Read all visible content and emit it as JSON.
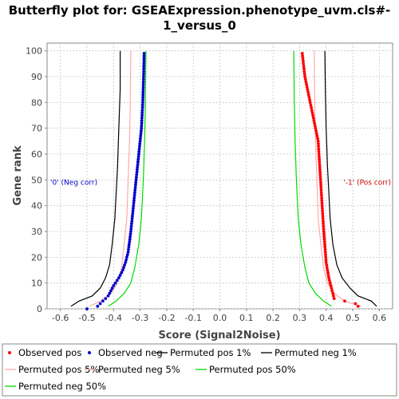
{
  "chart_data": {
    "type": "scatter",
    "title_lines": [
      "Butterfly plot for: GSEAExpression.phenotype_uvm.cls#-",
      "1_versus_0"
    ],
    "xlabel": "Score (Signal2Noise)",
    "ylabel": "Gene rank",
    "xlim": [
      -0.65,
      0.65
    ],
    "ylim": [
      0,
      103
    ],
    "x_ticks": [
      "-0.6",
      "-0.5",
      "-0.4",
      "-0.3",
      "-0.2",
      "-0.1",
      "0.0",
      "0.1",
      "0.2",
      "0.3",
      "0.4",
      "0.5",
      "0.6"
    ],
    "y_ticks": [
      "0",
      "10",
      "20",
      "30",
      "40",
      "50",
      "60",
      "70",
      "80",
      "90",
      "100"
    ],
    "grid": true,
    "legend_position": "bottom",
    "annotations": [
      {
        "text": "'0' (Neg corr)",
        "x": -0.5,
        "y": 49,
        "color": "#0000cc"
      },
      {
        "text": "'-1' (Pos corr)",
        "x": 0.5,
        "y": 49,
        "color": "#cc0000"
      }
    ],
    "series": [
      {
        "name": "Observed pos",
        "kind": "points",
        "color": "#ff0000",
        "x": [
          0.52,
          0.51,
          0.47,
          0.43,
          0.425,
          0.42,
          0.415,
          0.41,
          0.405,
          0.4,
          0.397,
          0.394,
          0.391,
          0.388,
          0.385,
          0.382,
          0.379,
          0.376,
          0.373,
          0.37,
          0.36,
          0.35,
          0.34,
          0.33,
          0.32,
          0.31
        ],
        "y": [
          1,
          2,
          3,
          4,
          6,
          8,
          10,
          12,
          15,
          18,
          22,
          26,
          30,
          35,
          40,
          45,
          50,
          55,
          60,
          65,
          70,
          75,
          80,
          85,
          90,
          99
        ]
      },
      {
        "name": "Observed neg",
        "kind": "points",
        "color": "#0000cc",
        "x": [
          -0.5,
          -0.46,
          -0.44,
          -0.42,
          -0.41,
          -0.4,
          -0.38,
          -0.365,
          -0.355,
          -0.345,
          -0.34,
          -0.335,
          -0.33,
          -0.325,
          -0.32,
          -0.315,
          -0.31,
          -0.305,
          -0.3,
          -0.295,
          -0.29,
          -0.287,
          -0.285
        ],
        "y": [
          0,
          1,
          3,
          5,
          7,
          9,
          12,
          15,
          18,
          22,
          26,
          30,
          35,
          40,
          45,
          50,
          55,
          60,
          65,
          70,
          80,
          90,
          99
        ]
      },
      {
        "name": "Permuted pos 1%",
        "kind": "line",
        "color": "#000000",
        "x": [
          0.59,
          0.57,
          0.52,
          0.49,
          0.46,
          0.44,
          0.425,
          0.415,
          0.41,
          0.405,
          0.4,
          0.397,
          0.395
        ],
        "y": [
          1,
          3,
          5,
          8,
          12,
          17,
          25,
          35,
          45,
          55,
          70,
          85,
          100
        ]
      },
      {
        "name": "Permuted neg 1%",
        "kind": "line",
        "color": "#000000",
        "x": [
          -0.56,
          -0.53,
          -0.48,
          -0.45,
          -0.43,
          -0.415,
          -0.405,
          -0.395,
          -0.39,
          -0.385,
          -0.38,
          -0.375,
          -0.375
        ],
        "y": [
          1,
          3,
          5,
          8,
          12,
          17,
          25,
          35,
          45,
          55,
          70,
          85,
          100
        ]
      },
      {
        "name": "Permuted pos 5%",
        "kind": "line",
        "color": "#ffaaaa",
        "x": [
          0.53,
          0.47,
          0.43,
          0.405,
          0.39,
          0.38,
          0.37,
          0.365,
          0.36,
          0.357,
          0.355
        ],
        "y": [
          1,
          3,
          6,
          10,
          16,
          25,
          35,
          50,
          65,
          80,
          100
        ]
      },
      {
        "name": "Permuted neg 5%",
        "kind": "line",
        "color": "#ffaaaa",
        "x": [
          -0.49,
          -0.45,
          -0.41,
          -0.385,
          -0.37,
          -0.36,
          -0.35,
          -0.345,
          -0.34,
          -0.337,
          -0.335
        ],
        "y": [
          1,
          3,
          6,
          10,
          16,
          25,
          35,
          50,
          65,
          80,
          100
        ]
      },
      {
        "name": "Permuted pos 50%",
        "kind": "line",
        "color": "#00dd00",
        "x": [
          0.42,
          0.39,
          0.36,
          0.335,
          0.32,
          0.305,
          0.295,
          0.288,
          0.283,
          0.28,
          0.278
        ],
        "y": [
          1,
          3,
          6,
          10,
          16,
          25,
          35,
          50,
          65,
          80,
          100
        ]
      },
      {
        "name": "Permuted neg 50%",
        "kind": "line",
        "color": "#00dd00",
        "x": [
          -0.42,
          -0.39,
          -0.36,
          -0.335,
          -0.32,
          -0.305,
          -0.295,
          -0.288,
          -0.283,
          -0.28,
          -0.278
        ],
        "y": [
          1,
          3,
          6,
          10,
          16,
          25,
          35,
          50,
          65,
          80,
          100
        ]
      }
    ]
  }
}
